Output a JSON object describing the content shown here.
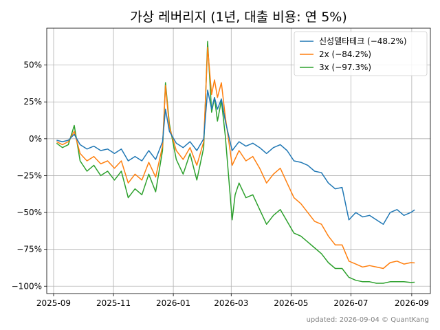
{
  "chart_data": {
    "type": "line",
    "title": "가상 레버리지 (1년, 대출 비용: 연 5%)",
    "xlabel": "",
    "ylabel": "",
    "footer": "updated: 2026-09-04 © QuantKang",
    "x_ticks": [
      "2025-09",
      "2025-11",
      "2026-01",
      "2026-03",
      "2026-05",
      "2026-07",
      "2026-09"
    ],
    "y_ticks": [
      -100,
      -75,
      -50,
      -25,
      0,
      25,
      50
    ],
    "y_tick_labels": [
      "−100%",
      "−75%",
      "−50%",
      "−25%",
      "0%",
      "25%",
      "50%"
    ],
    "xlim": [
      "2025-08-25",
      "2026-09-20"
    ],
    "ylim": [
      -105,
      75
    ],
    "grid": true,
    "legend_position": "top-right",
    "colors": {
      "s1": "#1f77b4",
      "s2": "#ff7f0e",
      "s3": "#2ca02c"
    },
    "series": [
      {
        "name": "신성델타테크 (−48.2%)",
        "points": [
          [
            "2025-09-04",
            -1
          ],
          [
            "2025-09-10",
            -2
          ],
          [
            "2025-09-16",
            -1
          ],
          [
            "2025-09-22",
            3
          ],
          [
            "2025-09-28",
            -4
          ],
          [
            "2025-10-05",
            -7
          ],
          [
            "2025-10-12",
            -5
          ],
          [
            "2025-10-19",
            -8
          ],
          [
            "2025-10-26",
            -7
          ],
          [
            "2025-11-02",
            -10
          ],
          [
            "2025-11-09",
            -7
          ],
          [
            "2025-11-16",
            -15
          ],
          [
            "2025-11-23",
            -12
          ],
          [
            "2025-11-30",
            -15
          ],
          [
            "2025-12-07",
            -8
          ],
          [
            "2025-12-14",
            -14
          ],
          [
            "2025-12-21",
            -2
          ],
          [
            "2025-12-24",
            20
          ],
          [
            "2025-12-28",
            5
          ],
          [
            "2026-01-04",
            -3
          ],
          [
            "2026-01-11",
            -6
          ],
          [
            "2026-01-18",
            -2
          ],
          [
            "2026-01-25",
            -8
          ],
          [
            "2026-02-01",
            0
          ],
          [
            "2026-02-05",
            33
          ],
          [
            "2026-02-09",
            20
          ],
          [
            "2026-02-12",
            28
          ],
          [
            "2026-02-15",
            20
          ],
          [
            "2026-02-19",
            27
          ],
          [
            "2026-02-23",
            12
          ],
          [
            "2026-03-02",
            -8
          ],
          [
            "2026-03-09",
            -2
          ],
          [
            "2026-03-16",
            -5
          ],
          [
            "2026-03-23",
            -3
          ],
          [
            "2026-03-30",
            -6
          ],
          [
            "2026-04-06",
            -10
          ],
          [
            "2026-04-13",
            -6
          ],
          [
            "2026-04-20",
            -4
          ],
          [
            "2026-04-27",
            -8
          ],
          [
            "2026-05-04",
            -15
          ],
          [
            "2026-05-11",
            -16
          ],
          [
            "2026-05-18",
            -18
          ],
          [
            "2026-05-25",
            -22
          ],
          [
            "2026-06-01",
            -23
          ],
          [
            "2026-06-08",
            -30
          ],
          [
            "2026-06-15",
            -34
          ],
          [
            "2026-06-22",
            -33
          ],
          [
            "2026-06-29",
            -55
          ],
          [
            "2026-07-06",
            -50
          ],
          [
            "2026-07-13",
            -53
          ],
          [
            "2026-07-20",
            -52
          ],
          [
            "2026-07-27",
            -55
          ],
          [
            "2026-08-03",
            -58
          ],
          [
            "2026-08-10",
            -50
          ],
          [
            "2026-08-17",
            -48
          ],
          [
            "2026-08-24",
            -52
          ],
          [
            "2026-08-31",
            -50
          ],
          [
            "2026-09-04",
            -48.2
          ]
        ]
      },
      {
        "name": "2x (−84.2%)",
        "points": [
          [
            "2025-09-04",
            -2
          ],
          [
            "2025-09-10",
            -4
          ],
          [
            "2025-09-16",
            -2
          ],
          [
            "2025-09-22",
            5
          ],
          [
            "2025-09-28",
            -10
          ],
          [
            "2025-10-05",
            -15
          ],
          [
            "2025-10-12",
            -12
          ],
          [
            "2025-10-19",
            -17
          ],
          [
            "2025-10-26",
            -15
          ],
          [
            "2025-11-02",
            -20
          ],
          [
            "2025-11-09",
            -15
          ],
          [
            "2025-11-16",
            -30
          ],
          [
            "2025-11-23",
            -24
          ],
          [
            "2025-11-30",
            -28
          ],
          [
            "2025-12-07",
            -16
          ],
          [
            "2025-12-14",
            -26
          ],
          [
            "2025-12-21",
            -5
          ],
          [
            "2025-12-24",
            36
          ],
          [
            "2025-12-28",
            8
          ],
          [
            "2026-01-04",
            -8
          ],
          [
            "2026-01-11",
            -14
          ],
          [
            "2026-01-18",
            -6
          ],
          [
            "2026-01-25",
            -18
          ],
          [
            "2026-02-01",
            -2
          ],
          [
            "2026-02-05",
            62
          ],
          [
            "2026-02-09",
            30
          ],
          [
            "2026-02-12",
            40
          ],
          [
            "2026-02-15",
            28
          ],
          [
            "2026-02-19",
            38
          ],
          [
            "2026-02-23",
            15
          ],
          [
            "2026-03-02",
            -18
          ],
          [
            "2026-03-09",
            -8
          ],
          [
            "2026-03-16",
            -15
          ],
          [
            "2026-03-23",
            -12
          ],
          [
            "2026-03-30",
            -20
          ],
          [
            "2026-04-06",
            -30
          ],
          [
            "2026-04-13",
            -24
          ],
          [
            "2026-04-20",
            -20
          ],
          [
            "2026-04-27",
            -30
          ],
          [
            "2026-05-04",
            -40
          ],
          [
            "2026-05-11",
            -44
          ],
          [
            "2026-05-18",
            -50
          ],
          [
            "2026-05-25",
            -56
          ],
          [
            "2026-06-01",
            -58
          ],
          [
            "2026-06-08",
            -66
          ],
          [
            "2026-06-15",
            -72
          ],
          [
            "2026-06-22",
            -72
          ],
          [
            "2026-06-29",
            -83
          ],
          [
            "2026-07-06",
            -85
          ],
          [
            "2026-07-13",
            -87
          ],
          [
            "2026-07-20",
            -86
          ],
          [
            "2026-07-27",
            -87
          ],
          [
            "2026-08-03",
            -88
          ],
          [
            "2026-08-10",
            -84
          ],
          [
            "2026-08-17",
            -83
          ],
          [
            "2026-08-24",
            -85
          ],
          [
            "2026-08-31",
            -84
          ],
          [
            "2026-09-04",
            -84.2
          ]
        ]
      },
      {
        "name": "3x (−97.3%)",
        "points": [
          [
            "2025-09-04",
            -3
          ],
          [
            "2025-09-10",
            -6
          ],
          [
            "2025-09-16",
            -4
          ],
          [
            "2025-09-22",
            9
          ],
          [
            "2025-09-28",
            -15
          ],
          [
            "2025-10-05",
            -22
          ],
          [
            "2025-10-12",
            -18
          ],
          [
            "2025-10-19",
            -25
          ],
          [
            "2025-10-26",
            -22
          ],
          [
            "2025-11-02",
            -28
          ],
          [
            "2025-11-09",
            -22
          ],
          [
            "2025-11-16",
            -40
          ],
          [
            "2025-11-23",
            -34
          ],
          [
            "2025-11-30",
            -38
          ],
          [
            "2025-12-07",
            -24
          ],
          [
            "2025-12-14",
            -36
          ],
          [
            "2025-12-21",
            -8
          ],
          [
            "2025-12-24",
            38
          ],
          [
            "2025-12-28",
            10
          ],
          [
            "2026-01-04",
            -14
          ],
          [
            "2026-01-11",
            -24
          ],
          [
            "2026-01-18",
            -10
          ],
          [
            "2026-01-25",
            -28
          ],
          [
            "2026-02-01",
            -6
          ],
          [
            "2026-02-05",
            66
          ],
          [
            "2026-02-09",
            18
          ],
          [
            "2026-02-12",
            28
          ],
          [
            "2026-02-15",
            12
          ],
          [
            "2026-02-19",
            26
          ],
          [
            "2026-02-23",
            2
          ],
          [
            "2026-03-02",
            -55
          ],
          [
            "2026-03-05",
            -38
          ],
          [
            "2026-03-09",
            -30
          ],
          [
            "2026-03-16",
            -40
          ],
          [
            "2026-03-23",
            -38
          ],
          [
            "2026-03-30",
            -48
          ],
          [
            "2026-04-06",
            -58
          ],
          [
            "2026-04-13",
            -52
          ],
          [
            "2026-04-20",
            -48
          ],
          [
            "2026-04-27",
            -56
          ],
          [
            "2026-05-04",
            -64
          ],
          [
            "2026-05-11",
            -66
          ],
          [
            "2026-05-18",
            -70
          ],
          [
            "2026-05-25",
            -74
          ],
          [
            "2026-06-01",
            -78
          ],
          [
            "2026-06-08",
            -84
          ],
          [
            "2026-06-15",
            -88
          ],
          [
            "2026-06-22",
            -88
          ],
          [
            "2026-06-29",
            -94
          ],
          [
            "2026-07-06",
            -96
          ],
          [
            "2026-07-13",
            -97
          ],
          [
            "2026-07-20",
            -97
          ],
          [
            "2026-07-27",
            -98
          ],
          [
            "2026-08-03",
            -98
          ],
          [
            "2026-08-10",
            -97
          ],
          [
            "2026-08-17",
            -97
          ],
          [
            "2026-08-24",
            -97
          ],
          [
            "2026-08-31",
            -97.5
          ],
          [
            "2026-09-04",
            -97.3
          ]
        ]
      }
    ]
  }
}
